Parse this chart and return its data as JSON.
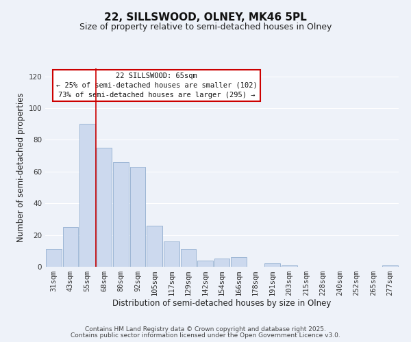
{
  "title": "22, SILLSWOOD, OLNEY, MK46 5PL",
  "subtitle": "Size of property relative to semi-detached houses in Olney",
  "xlabel": "Distribution of semi-detached houses by size in Olney",
  "ylabel": "Number of semi-detached properties",
  "bar_labels": [
    "31sqm",
    "43sqm",
    "55sqm",
    "68sqm",
    "80sqm",
    "92sqm",
    "105sqm",
    "117sqm",
    "129sqm",
    "142sqm",
    "154sqm",
    "166sqm",
    "178sqm",
    "191sqm",
    "203sqm",
    "215sqm",
    "228sqm",
    "240sqm",
    "252sqm",
    "265sqm",
    "277sqm"
  ],
  "bar_values": [
    11,
    25,
    90,
    75,
    66,
    63,
    26,
    16,
    11,
    4,
    5,
    6,
    0,
    2,
    1,
    0,
    0,
    0,
    0,
    0,
    1
  ],
  "bar_color": "#ccd9ee",
  "bar_edge_color": "#92afd0",
  "ylim": [
    0,
    125
  ],
  "yticks": [
    0,
    20,
    40,
    60,
    80,
    100,
    120
  ],
  "vline_index": 2.5,
  "annotation_title": "22 SILLSWOOD: 65sqm",
  "annotation_line1": "← 25% of semi-detached houses are smaller (102)",
  "annotation_line2": "73% of semi-detached houses are larger (295) →",
  "annotation_box_color": "#ffffff",
  "annotation_box_edge": "#cc0000",
  "vline_color": "#cc0000",
  "footer1": "Contains HM Land Registry data © Crown copyright and database right 2025.",
  "footer2": "Contains public sector information licensed under the Open Government Licence v3.0.",
  "background_color": "#eef2f9",
  "grid_color": "#ffffff",
  "title_fontsize": 11,
  "subtitle_fontsize": 9,
  "axis_label_fontsize": 8.5,
  "tick_fontsize": 7.5,
  "annotation_fontsize": 7.5,
  "footer_fontsize": 6.5
}
